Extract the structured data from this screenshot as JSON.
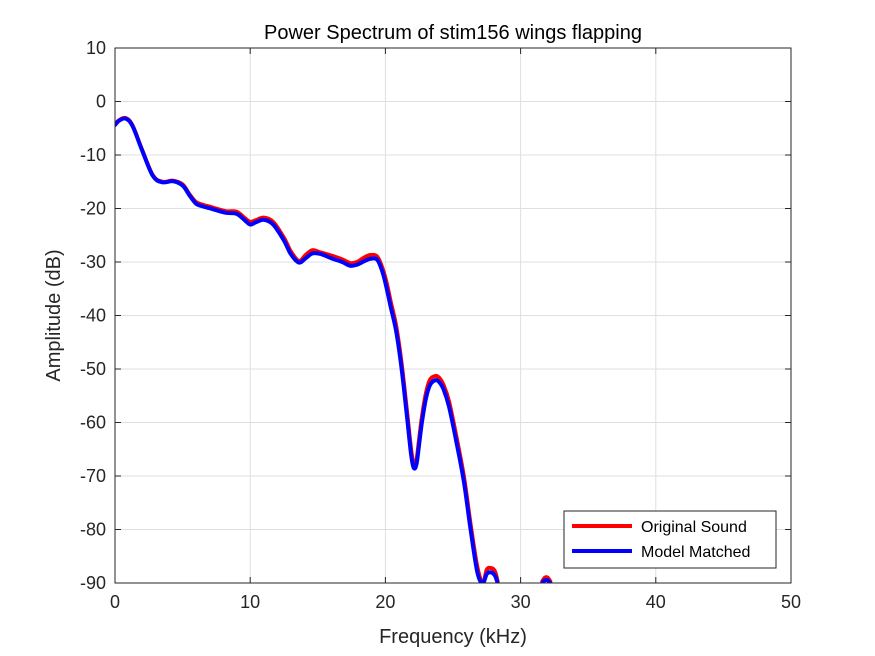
{
  "chart_data": {
    "type": "line",
    "title": "Power Spectrum of stim156 wings flapping",
    "xlabel": "Frequency (kHz)",
    "ylabel": "Amplitude (dB)",
    "xlim": [
      0,
      50
    ],
    "ylim": [
      -90,
      10
    ],
    "xticks": [
      0,
      10,
      20,
      30,
      40,
      50
    ],
    "yticks": [
      10,
      0,
      -10,
      -20,
      -30,
      -40,
      -50,
      -60,
      -70,
      -80,
      -90
    ],
    "grid": true,
    "legend": "bottom-right",
    "series": [
      {
        "name": "Original Sound",
        "color": "#ff0000",
        "segments": [
          {
            "x": [
              0,
              0.3,
              0.8,
              1.3,
              2,
              2.8,
              3.5,
              4.3,
              5,
              5.5,
              6,
              6.5,
              7.2,
              8.2,
              9,
              9.6,
              10,
              10.4,
              11,
              11.7,
              12.5,
              13,
              13.6,
              14.1,
              14.6,
              15.2,
              16,
              16.8,
              17.4,
              17.9,
              18.4,
              18.9,
              19.4,
              19.8,
              20.1,
              20.4,
              20.8,
              21.2,
              21.6,
              21.9,
              22.1,
              22.3,
              22.5,
              22.7,
              23,
              23.3,
              23.7,
              24,
              24.3,
              24.7,
              25.2,
              25.8,
              26.3,
              26.8,
              27.2,
              27.5,
              27.8,
              28.1,
              28.3
            ],
            "y": [
              -4.3,
              -3.5,
              -3.1,
              -4.5,
              -9,
              -13.8,
              -15,
              -14.8,
              -15.5,
              -17.3,
              -18.8,
              -19.3,
              -19.8,
              -20.5,
              -20.6,
              -21.8,
              -22.5,
              -22.2,
              -21.7,
              -22.5,
              -25.5,
              -28,
              -29.8,
              -28.7,
              -27.8,
              -28.2,
              -28.8,
              -29.5,
              -30.2,
              -30,
              -29.2,
              -28.7,
              -29,
              -31.3,
              -34,
              -37.5,
              -42,
              -49,
              -58,
              -65,
              -68,
              -67,
              -63,
              -59,
              -54.5,
              -52,
              -51.3,
              -51.7,
              -53,
              -56,
              -62,
              -70,
              -79,
              -87,
              -90,
              -87.5,
              -87.2,
              -87.8,
              -89.7
            ]
          },
          {
            "x": [
              31.6,
              31.8,
              32,
              32.2
            ],
            "y": [
              -89.7,
              -89,
              -89,
              -89.7
            ]
          }
        ]
      },
      {
        "name": "Model Matched",
        "color": "#0000ff",
        "segments": [
          {
            "x": [
              0,
              0.3,
              0.8,
              1.3,
              2,
              2.8,
              3.5,
              4.3,
              5,
              5.5,
              6,
              6.5,
              7.2,
              8.2,
              9,
              9.6,
              10,
              10.4,
              11,
              11.7,
              12.5,
              13,
              13.6,
              14.1,
              14.6,
              15.2,
              16,
              16.8,
              17.4,
              17.9,
              18.4,
              18.9,
              19.4,
              19.8,
              20.1,
              20.4,
              20.8,
              21.2,
              21.6,
              21.9,
              22.1,
              22.3,
              22.5,
              22.7,
              23,
              23.3,
              23.7,
              24,
              24.3,
              24.7,
              25.2,
              25.8,
              26.3,
              26.8,
              27.2,
              27.5,
              27.8,
              28.1,
              28.3
            ],
            "y": [
              -4.4,
              -3.6,
              -3.2,
              -4.6,
              -9.1,
              -13.9,
              -15.1,
              -14.9,
              -15.7,
              -17.5,
              -19.1,
              -19.6,
              -20.1,
              -20.8,
              -21,
              -22.2,
              -23,
              -22.6,
              -22.1,
              -23,
              -26,
              -28.5,
              -30.1,
              -29.3,
              -28.4,
              -28.5,
              -29.3,
              -30,
              -30.7,
              -30.5,
              -29.9,
              -29.4,
              -29.6,
              -32,
              -35,
              -38.5,
              -43,
              -50,
              -59,
              -66,
              -68.5,
              -67.8,
              -64,
              -60,
              -55.5,
              -53,
              -52.1,
              -52.5,
              -53.8,
              -57,
              -63,
              -71,
              -80,
              -88,
              -90,
              -88.3,
              -88,
              -88.6,
              -90
            ]
          },
          {
            "x": [
              31.6,
              31.8,
              32,
              32.2
            ],
            "y": [
              -90,
              -89.5,
              -89.5,
              -90
            ]
          }
        ]
      }
    ]
  }
}
